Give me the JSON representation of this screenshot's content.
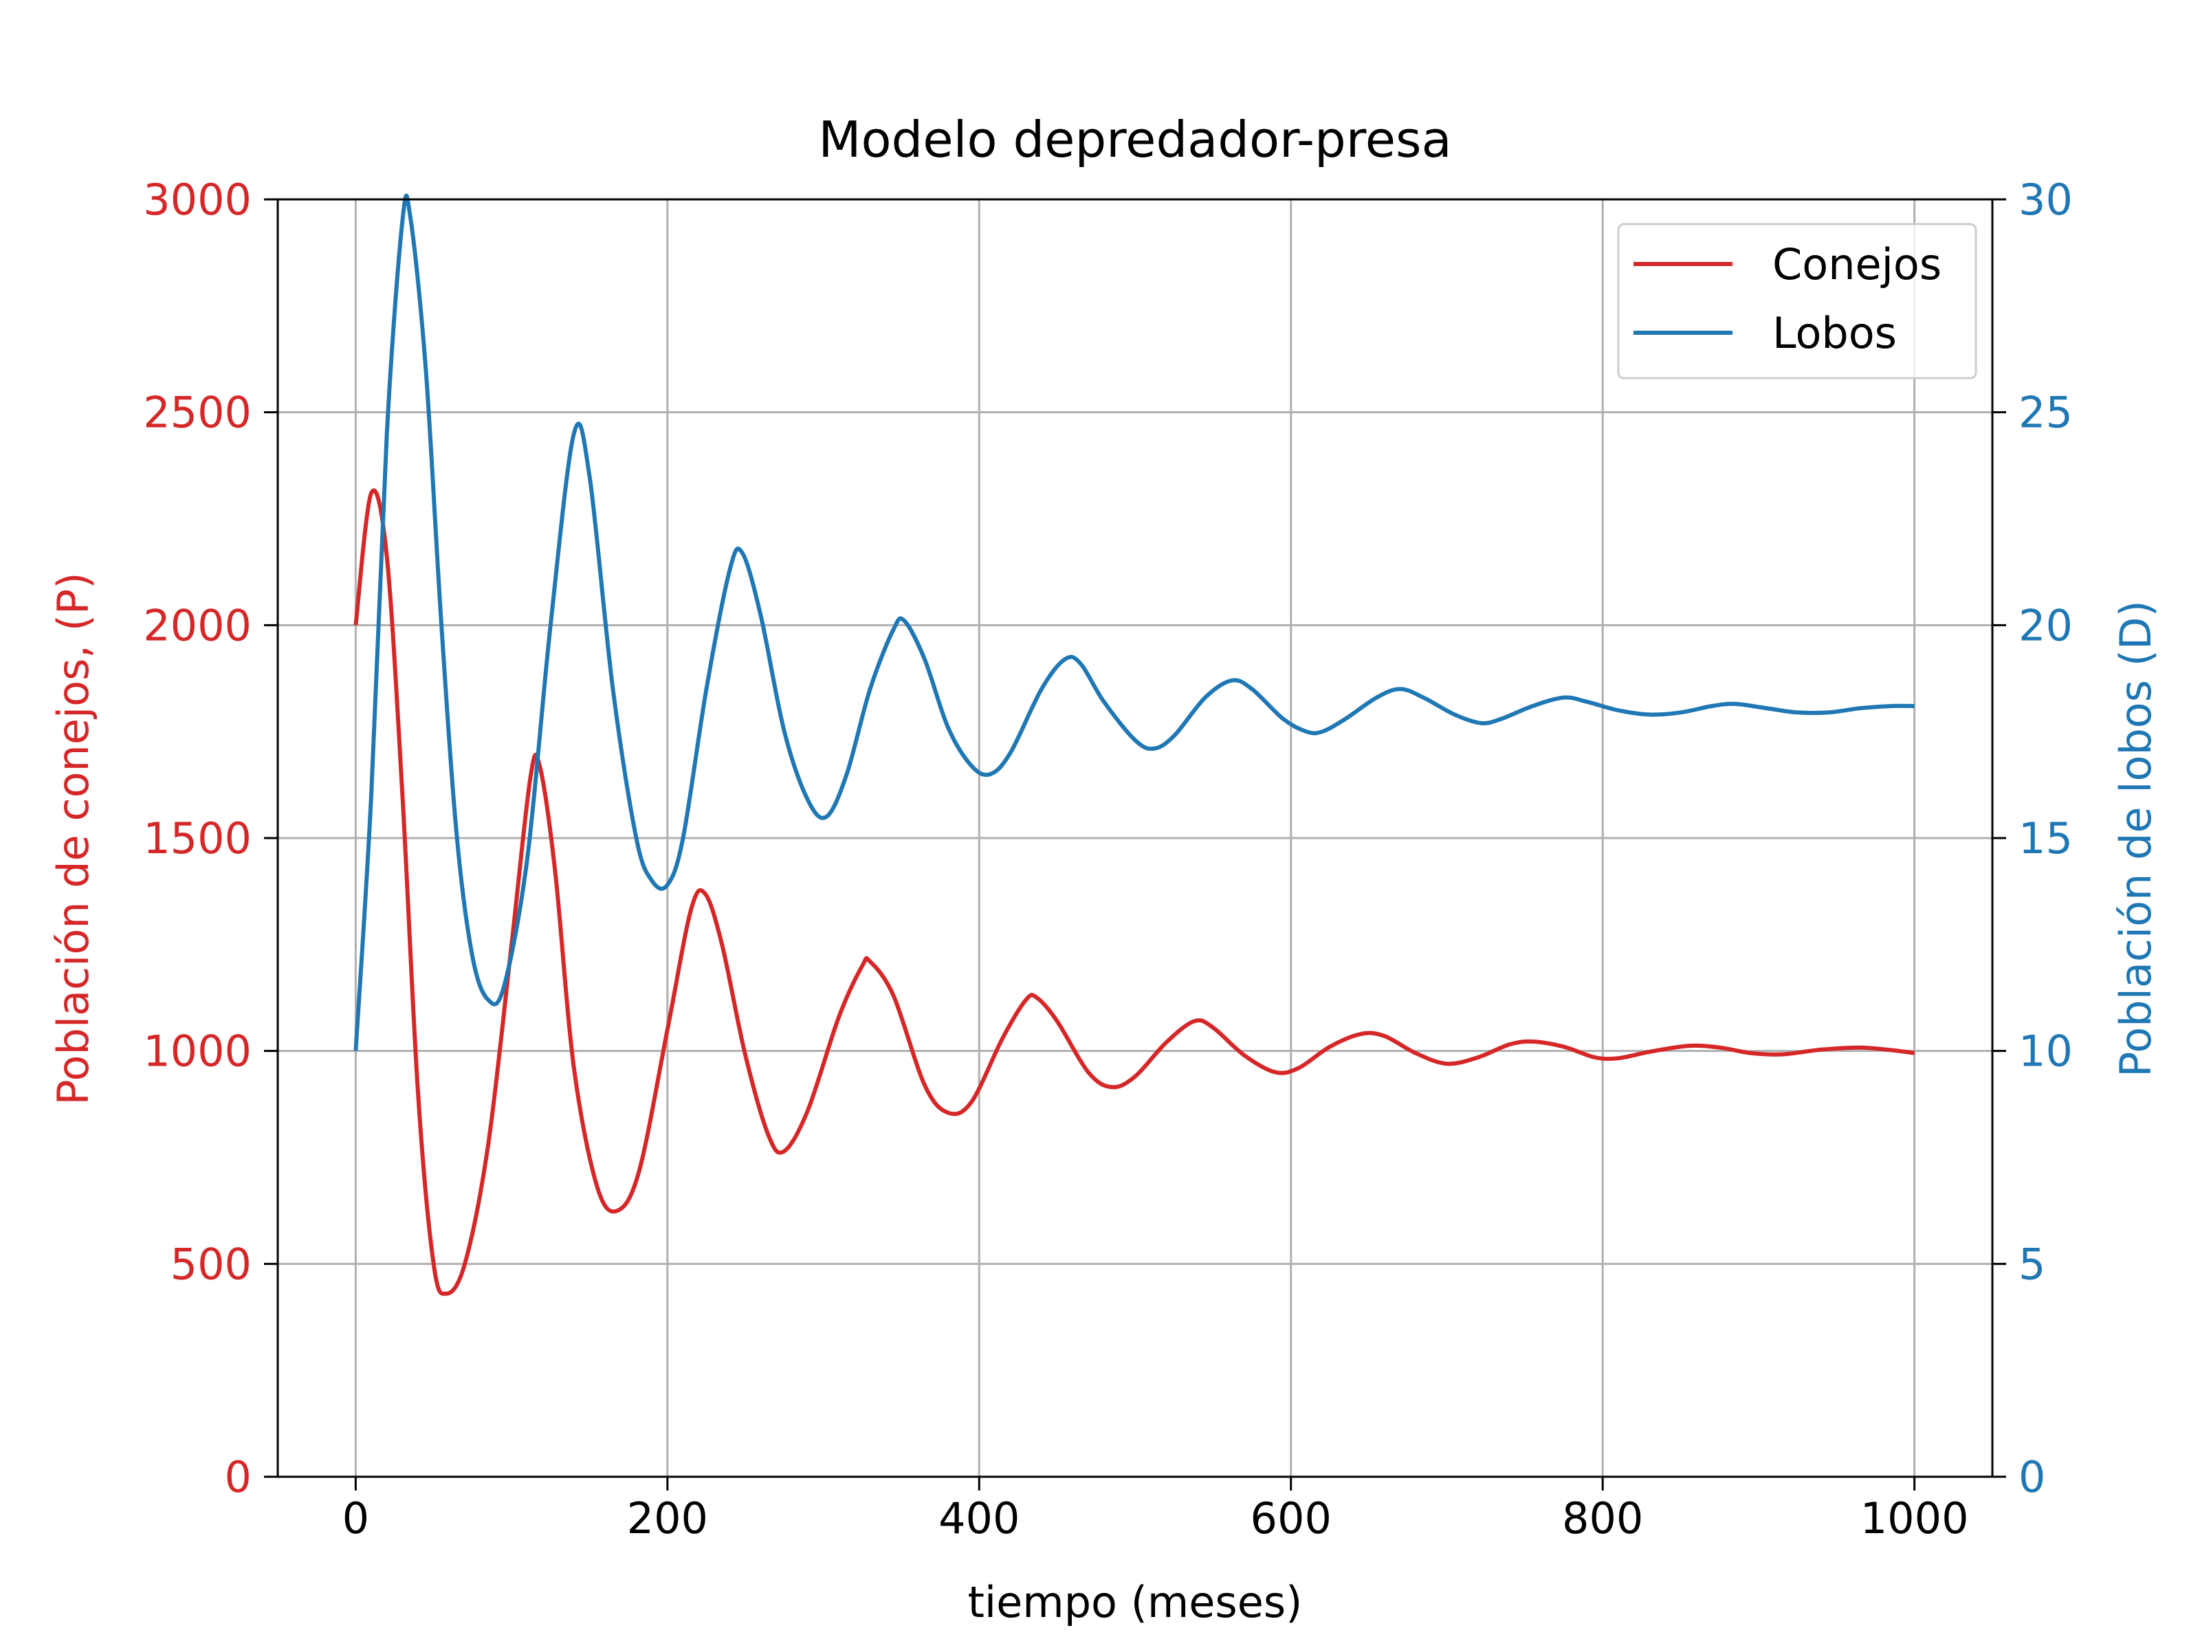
{
  "chart_data": {
    "type": "line",
    "title": "Modelo depredador-presa",
    "xlabel": "tiempo (meses)",
    "ylabel_left": "Población de conejos, (P)",
    "ylabel_right": "Población de lobos (D)",
    "xlim": [
      -50,
      1050
    ],
    "ylim_left": [
      0,
      3000
    ],
    "ylim_right": [
      0,
      30
    ],
    "x_ticks": [
      0,
      200,
      400,
      600,
      800,
      1000
    ],
    "y_ticks_left": [
      0,
      500,
      1000,
      1500,
      2000,
      2500,
      3000
    ],
    "y_ticks_right": [
      0,
      5,
      10,
      15,
      20,
      25,
      30
    ],
    "grid": true,
    "legend_position": "top-right",
    "series": [
      {
        "name": "Conejos",
        "axis": "left",
        "color": "#d62728",
        "points": [
          [
            0,
            2000
          ],
          [
            10,
            2310
          ],
          [
            20,
            2160
          ],
          [
            30,
            1600
          ],
          [
            40,
            900
          ],
          [
            50,
            500
          ],
          [
            58,
            430
          ],
          [
            70,
            500
          ],
          [
            85,
            780
          ],
          [
            100,
            1250
          ],
          [
            112,
            1640
          ],
          [
            118,
            1670
          ],
          [
            128,
            1420
          ],
          [
            140,
            960
          ],
          [
            155,
            680
          ],
          [
            168,
            625
          ],
          [
            182,
            720
          ],
          [
            200,
            1050
          ],
          [
            215,
            1330
          ],
          [
            224,
            1370
          ],
          [
            235,
            1250
          ],
          [
            250,
            990
          ],
          [
            265,
            800
          ],
          [
            275,
            765
          ],
          [
            290,
            860
          ],
          [
            310,
            1080
          ],
          [
            325,
            1200
          ],
          [
            330,
            1210
          ],
          [
            345,
            1130
          ],
          [
            365,
            920
          ],
          [
            380,
            855
          ],
          [
            395,
            880
          ],
          [
            415,
            1030
          ],
          [
            430,
            1120
          ],
          [
            437,
            1125
          ],
          [
            450,
            1070
          ],
          [
            470,
            950
          ],
          [
            485,
            915
          ],
          [
            500,
            940
          ],
          [
            520,
            1020
          ],
          [
            538,
            1070
          ],
          [
            550,
            1055
          ],
          [
            570,
            990
          ],
          [
            590,
            950
          ],
          [
            605,
            960
          ],
          [
            625,
            1010
          ],
          [
            645,
            1040
          ],
          [
            660,
            1035
          ],
          [
            680,
            995
          ],
          [
            700,
            970
          ],
          [
            720,
            985
          ],
          [
            740,
            1015
          ],
          [
            755,
            1022
          ],
          [
            775,
            1010
          ],
          [
            795,
            985
          ],
          [
            810,
            983
          ],
          [
            830,
            998
          ],
          [
            855,
            1012
          ],
          [
            875,
            1008
          ],
          [
            895,
            995
          ],
          [
            915,
            992
          ],
          [
            940,
            1003
          ],
          [
            965,
            1008
          ],
          [
            985,
            1002
          ],
          [
            1000,
            995
          ]
        ]
      },
      {
        "name": "Lobos",
        "axis": "right",
        "color": "#1f77b4",
        "points": [
          [
            0,
            10
          ],
          [
            10,
            16
          ],
          [
            20,
            24.5
          ],
          [
            30,
            29.5
          ],
          [
            35,
            29.6
          ],
          [
            45,
            26
          ],
          [
            55,
            20
          ],
          [
            65,
            15
          ],
          [
            75,
            12.2
          ],
          [
            85,
            11.2
          ],
          [
            95,
            11.5
          ],
          [
            110,
            14.5
          ],
          [
            125,
            20
          ],
          [
            140,
            24.5
          ],
          [
            150,
            23.5
          ],
          [
            165,
            18.5
          ],
          [
            180,
            15
          ],
          [
            190,
            14
          ],
          [
            200,
            13.9
          ],
          [
            210,
            15
          ],
          [
            225,
            18.5
          ],
          [
            240,
            21.3
          ],
          [
            248,
            21.7
          ],
          [
            260,
            20.2
          ],
          [
            275,
            17.5
          ],
          [
            290,
            15.9
          ],
          [
            302,
            15.5
          ],
          [
            315,
            16.5
          ],
          [
            330,
            18.5
          ],
          [
            345,
            19.9
          ],
          [
            352,
            20.1
          ],
          [
            365,
            19.2
          ],
          [
            380,
            17.6
          ],
          [
            395,
            16.7
          ],
          [
            407,
            16.5
          ],
          [
            420,
            17
          ],
          [
            440,
            18.5
          ],
          [
            455,
            19.2
          ],
          [
            465,
            19.1
          ],
          [
            480,
            18.2
          ],
          [
            500,
            17.3
          ],
          [
            512,
            17.1
          ],
          [
            525,
            17.4
          ],
          [
            545,
            18.3
          ],
          [
            562,
            18.7
          ],
          [
            575,
            18.5
          ],
          [
            595,
            17.8
          ],
          [
            610,
            17.5
          ],
          [
            620,
            17.5
          ],
          [
            635,
            17.8
          ],
          [
            655,
            18.3
          ],
          [
            670,
            18.5
          ],
          [
            685,
            18.3
          ],
          [
            705,
            17.9
          ],
          [
            722,
            17.7
          ],
          [
            735,
            17.8
          ],
          [
            755,
            18.1
          ],
          [
            775,
            18.3
          ],
          [
            790,
            18.2
          ],
          [
            810,
            18
          ],
          [
            830,
            17.9
          ],
          [
            850,
            17.95
          ],
          [
            870,
            18.1
          ],
          [
            885,
            18.15
          ],
          [
            905,
            18.05
          ],
          [
            925,
            17.95
          ],
          [
            945,
            17.95
          ],
          [
            965,
            18.05
          ],
          [
            985,
            18.1
          ],
          [
            1000,
            18.1
          ]
        ]
      }
    ]
  }
}
